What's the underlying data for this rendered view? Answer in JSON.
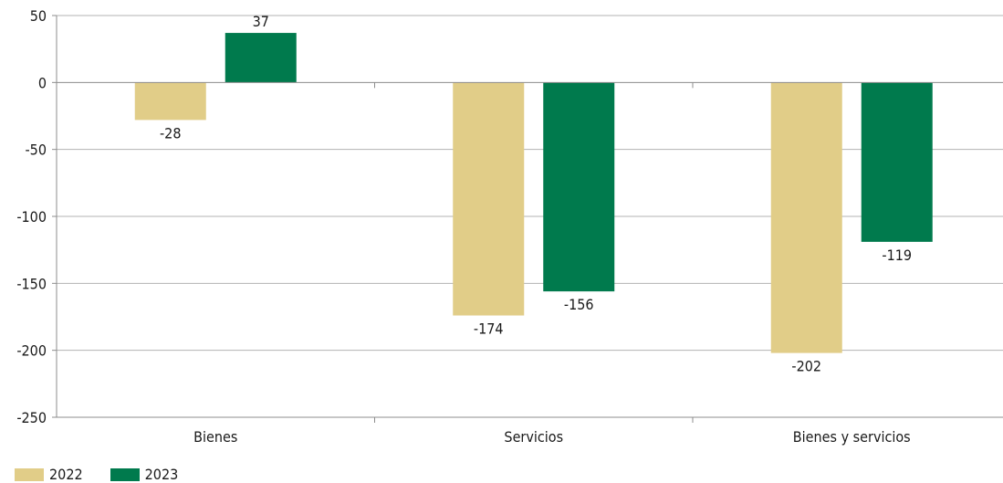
{
  "chart_data": {
    "type": "bar",
    "title": "",
    "xlabel": "",
    "ylabel": "",
    "categories": [
      "Bienes",
      "Servicios",
      "Bienes y servicios"
    ],
    "series": [
      {
        "name": "2022",
        "values": [
          -28,
          -174,
          -202
        ],
        "color": "#e1cd88"
      },
      {
        "name": "2023",
        "values": [
          37,
          -156,
          -119
        ],
        "color": "#007a4d"
      }
    ],
    "ylim": [
      -250,
      50
    ],
    "yticks": [
      50,
      0,
      -50,
      -100,
      -150,
      -200,
      -250
    ],
    "grid": true,
    "legend": "bottom-left"
  }
}
